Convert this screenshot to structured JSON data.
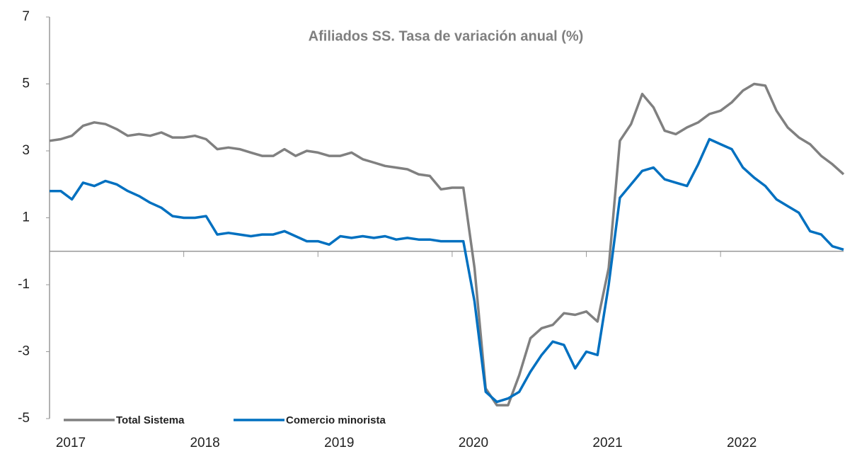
{
  "chart_data": {
    "type": "line",
    "title": "Afiliados SS. Tasa de variación anual (%)",
    "categories": [
      "2017",
      null,
      null,
      null,
      null,
      null,
      null,
      null,
      null,
      null,
      null,
      null,
      "2018",
      null,
      null,
      null,
      null,
      null,
      null,
      null,
      null,
      null,
      null,
      null,
      "2019",
      null,
      null,
      null,
      null,
      null,
      null,
      null,
      null,
      null,
      null,
      null,
      "2020",
      null,
      null,
      null,
      null,
      null,
      null,
      null,
      null,
      null,
      null,
      null,
      "2021",
      null,
      null,
      null,
      null,
      null,
      null,
      null,
      null,
      null,
      null,
      null,
      "2022",
      null,
      null,
      null,
      null,
      null,
      null,
      null,
      null,
      null,
      null,
      null
    ],
    "series": [
      {
        "name": "Total Sistema",
        "color": "#808080",
        "values": [
          3.3,
          3.35,
          3.45,
          3.75,
          3.85,
          3.8,
          3.65,
          3.45,
          3.5,
          3.45,
          3.55,
          3.4,
          3.4,
          3.45,
          3.35,
          3.05,
          3.1,
          3.05,
          2.95,
          2.85,
          2.85,
          3.05,
          2.85,
          3.0,
          2.95,
          2.85,
          2.85,
          2.95,
          2.75,
          2.65,
          2.55,
          2.5,
          2.45,
          2.3,
          2.25,
          1.85,
          1.9,
          1.9,
          -0.5,
          -4.1,
          -4.6,
          -4.6,
          -3.7,
          -2.6,
          -2.3,
          -2.2,
          -1.85,
          -1.9,
          -1.8,
          -2.1,
          -0.5,
          3.3,
          3.8,
          4.7,
          4.3,
          3.6,
          3.5,
          3.7,
          3.85,
          4.1,
          4.2,
          4.45,
          4.8,
          5.0,
          4.95,
          4.2,
          3.7,
          3.4,
          3.2,
          2.85,
          2.6,
          2.3
        ]
      },
      {
        "name": "Comercio minorista",
        "color": "#0070c0",
        "values": [
          1.8,
          1.8,
          1.55,
          2.05,
          1.95,
          2.1,
          2.0,
          1.8,
          1.65,
          1.45,
          1.3,
          1.05,
          1.0,
          1.0,
          1.05,
          0.5,
          0.55,
          0.5,
          0.45,
          0.5,
          0.5,
          0.6,
          0.45,
          0.3,
          0.3,
          0.2,
          0.45,
          0.4,
          0.45,
          0.4,
          0.45,
          0.35,
          0.4,
          0.35,
          0.35,
          0.3,
          0.3,
          0.3,
          -1.5,
          -4.2,
          -4.5,
          -4.4,
          -4.2,
          -3.6,
          -3.1,
          -2.7,
          -2.8,
          -3.5,
          -3.0,
          -3.1,
          -1.0,
          1.6,
          2.0,
          2.4,
          2.5,
          2.15,
          2.05,
          1.95,
          2.6,
          3.35,
          3.2,
          3.05,
          2.5,
          2.2,
          1.95,
          1.55,
          1.35,
          1.15,
          0.6,
          0.5,
          0.15,
          0.05
        ]
      }
    ],
    "ylim": [
      -5,
      7
    ],
    "yticks": [
      -5,
      -3,
      -1,
      1,
      3,
      5,
      7
    ],
    "legend": "bottom-left"
  }
}
